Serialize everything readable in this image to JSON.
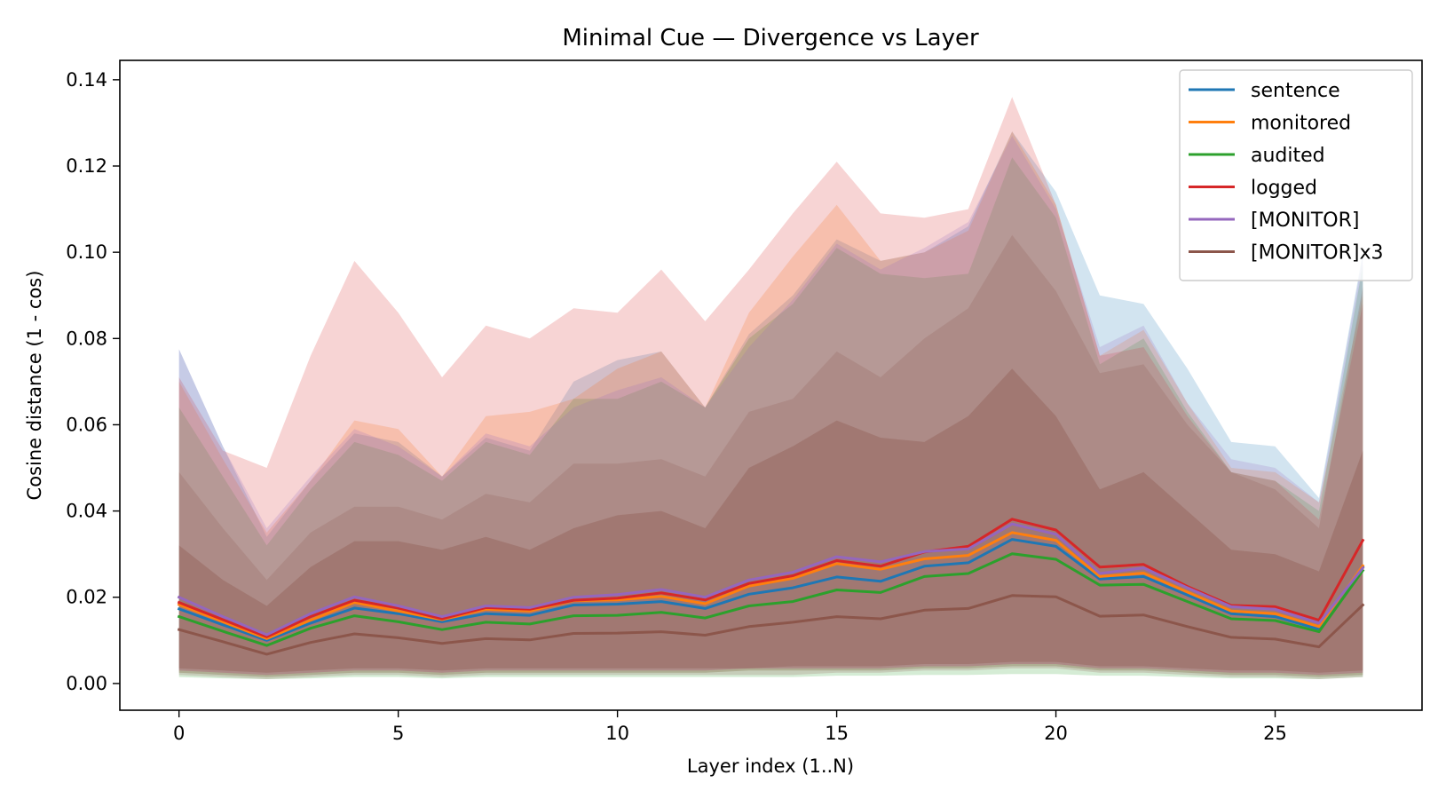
{
  "chart_data": {
    "type": "line",
    "title": "Minimal Cue — Divergence vs Layer",
    "xlabel": "Layer index (1..N)",
    "ylabel": "Cosine distance (1 - cos)",
    "xlim": [
      -1.35,
      28.35
    ],
    "ylim": [
      -0.0062,
      0.1445
    ],
    "x_ticks": [
      0,
      5,
      10,
      15,
      20,
      25
    ],
    "y_ticks": [
      0.0,
      0.02,
      0.04,
      0.06,
      0.08,
      0.1,
      0.12,
      0.14
    ],
    "y_tick_labels": [
      "0.00",
      "0.02",
      "0.04",
      "0.06",
      "0.08",
      "0.10",
      "0.12",
      "0.14"
    ],
    "legend_position": "top-right",
    "grid": false,
    "x": [
      0,
      1,
      2,
      3,
      4,
      5,
      6,
      7,
      8,
      9,
      10,
      11,
      12,
      13,
      14,
      15,
      16,
      17,
      18,
      19,
      20,
      21,
      22,
      23,
      24,
      25,
      26,
      27
    ],
    "series": [
      {
        "name": "sentence",
        "color": "#1f77b4",
        "values": [
          0.0173,
          0.0136,
          0.01,
          0.014,
          0.0175,
          0.0162,
          0.0143,
          0.0162,
          0.0158,
          0.0182,
          0.0184,
          0.019,
          0.0174,
          0.0207,
          0.0222,
          0.0247,
          0.0237,
          0.0272,
          0.028,
          0.0334,
          0.0318,
          0.0242,
          0.0248,
          0.0205,
          0.0162,
          0.0155,
          0.0126,
          0.027
        ],
        "upper": [
          0.0775,
          0.055,
          0.034,
          0.047,
          0.058,
          0.056,
          0.048,
          0.057,
          0.054,
          0.07,
          0.075,
          0.077,
          0.064,
          0.081,
          0.09,
          0.103,
          0.098,
          0.1,
          0.106,
          0.128,
          0.114,
          0.09,
          0.088,
          0.073,
          0.056,
          0.055,
          0.043,
          0.1
        ],
        "lower": [
          0.0025,
          0.002,
          0.0015,
          0.002,
          0.0025,
          0.0025,
          0.002,
          0.0025,
          0.0025,
          0.0025,
          0.0025,
          0.0025,
          0.0025,
          0.003,
          0.003,
          0.003,
          0.003,
          0.0035,
          0.0035,
          0.004,
          0.004,
          0.003,
          0.003,
          0.0025,
          0.002,
          0.002,
          0.0015,
          0.002
        ]
      },
      {
        "name": "monitored",
        "color": "#ff7f0e",
        "values": [
          0.0183,
          0.0143,
          0.0104,
          0.0147,
          0.0188,
          0.0168,
          0.0148,
          0.0172,
          0.0168,
          0.0192,
          0.0194,
          0.0202,
          0.0185,
          0.0226,
          0.0244,
          0.0278,
          0.0265,
          0.0289,
          0.0297,
          0.035,
          0.0332,
          0.0248,
          0.0256,
          0.0212,
          0.0168,
          0.0162,
          0.0132,
          0.0273
        ],
        "upper": [
          0.07,
          0.052,
          0.035,
          0.047,
          0.061,
          0.059,
          0.048,
          0.062,
          0.063,
          0.066,
          0.073,
          0.077,
          0.064,
          0.086,
          0.099,
          0.111,
          0.098,
          0.1,
          0.105,
          0.128,
          0.111,
          0.076,
          0.082,
          0.065,
          0.05,
          0.049,
          0.042,
          0.09
        ],
        "lower": [
          0.0025,
          0.002,
          0.0015,
          0.002,
          0.0025,
          0.0025,
          0.002,
          0.0025,
          0.0025,
          0.0025,
          0.0025,
          0.0025,
          0.0025,
          0.003,
          0.003,
          0.003,
          0.003,
          0.0035,
          0.0035,
          0.004,
          0.004,
          0.003,
          0.003,
          0.0025,
          0.002,
          0.002,
          0.0015,
          0.002
        ]
      },
      {
        "name": "audited",
        "color": "#2ca02c",
        "values": [
          0.0155,
          0.0121,
          0.0088,
          0.0128,
          0.0157,
          0.0143,
          0.0125,
          0.0142,
          0.0138,
          0.0157,
          0.0158,
          0.0165,
          0.0152,
          0.018,
          0.019,
          0.0217,
          0.0211,
          0.0248,
          0.0255,
          0.0301,
          0.0288,
          0.0228,
          0.023,
          0.019,
          0.015,
          0.0146,
          0.012,
          0.0262
        ],
        "upper": [
          0.064,
          0.048,
          0.032,
          0.045,
          0.056,
          0.053,
          0.047,
          0.056,
          0.053,
          0.066,
          0.066,
          0.07,
          0.064,
          0.08,
          0.088,
          0.101,
          0.095,
          0.094,
          0.095,
          0.122,
          0.108,
          0.074,
          0.08,
          0.063,
          0.049,
          0.047,
          0.04,
          0.097
        ],
        "lower": [
          0.0015,
          0.0012,
          0.001,
          0.0012,
          0.0015,
          0.0015,
          0.0012,
          0.0015,
          0.0015,
          0.0015,
          0.0015,
          0.0015,
          0.0015,
          0.0015,
          0.0015,
          0.0018,
          0.0018,
          0.002,
          0.002,
          0.0022,
          0.0022,
          0.0018,
          0.0018,
          0.0015,
          0.0012,
          0.0012,
          0.001,
          0.0015
        ]
      },
      {
        "name": "logged",
        "color": "#d62728",
        "values": [
          0.0188,
          0.0148,
          0.0108,
          0.0155,
          0.0193,
          0.0175,
          0.015,
          0.0176,
          0.0172,
          0.0193,
          0.0198,
          0.021,
          0.0194,
          0.0232,
          0.025,
          0.0285,
          0.0272,
          0.0305,
          0.0318,
          0.0381,
          0.0356,
          0.027,
          0.0276,
          0.0225,
          0.0181,
          0.0178,
          0.0147,
          0.0332
        ],
        "upper": [
          0.071,
          0.054,
          0.05,
          0.076,
          0.098,
          0.086,
          0.071,
          0.083,
          0.08,
          0.087,
          0.086,
          0.096,
          0.084,
          0.096,
          0.109,
          0.121,
          0.109,
          0.108,
          0.11,
          0.136,
          0.111,
          0.076,
          0.078,
          0.062,
          0.049,
          0.047,
          0.038,
          0.088
        ],
        "lower": [
          0.003,
          0.0025,
          0.002,
          0.0025,
          0.003,
          0.003,
          0.0025,
          0.003,
          0.003,
          0.003,
          0.003,
          0.003,
          0.003,
          0.0035,
          0.0035,
          0.0035,
          0.0035,
          0.004,
          0.004,
          0.0045,
          0.0045,
          0.0035,
          0.0035,
          0.003,
          0.0025,
          0.0025,
          0.002,
          0.0025
        ]
      },
      {
        "name": "[MONITOR]",
        "color": "#9467bd",
        "values": [
          0.02,
          0.0155,
          0.0113,
          0.0162,
          0.0201,
          0.018,
          0.0155,
          0.018,
          0.0176,
          0.02,
          0.0206,
          0.0218,
          0.02,
          0.024,
          0.0258,
          0.0294,
          0.0282,
          0.0306,
          0.0312,
          0.037,
          0.0346,
          0.0255,
          0.0268,
          0.0222,
          0.0178,
          0.0172,
          0.014,
          0.0268
        ],
        "upper": [
          0.0775,
          0.055,
          0.036,
          0.048,
          0.059,
          0.055,
          0.048,
          0.058,
          0.055,
          0.064,
          0.068,
          0.071,
          0.064,
          0.078,
          0.089,
          0.102,
          0.096,
          0.101,
          0.107,
          0.127,
          0.11,
          0.078,
          0.083,
          0.065,
          0.052,
          0.05,
          0.042,
          0.099
        ],
        "lower": [
          0.003,
          0.0025,
          0.002,
          0.0025,
          0.003,
          0.003,
          0.0025,
          0.003,
          0.003,
          0.003,
          0.003,
          0.003,
          0.003,
          0.0035,
          0.0035,
          0.0035,
          0.0035,
          0.004,
          0.004,
          0.0045,
          0.0045,
          0.0035,
          0.0035,
          0.003,
          0.0025,
          0.0025,
          0.002,
          0.0025
        ]
      },
      {
        "name": "[MONITOR]x3",
        "color": "#8c564b",
        "values": [
          0.0125,
          0.0097,
          0.0068,
          0.0095,
          0.0115,
          0.0106,
          0.0093,
          0.0104,
          0.0101,
          0.0116,
          0.0117,
          0.012,
          0.0112,
          0.0132,
          0.0142,
          0.0155,
          0.015,
          0.017,
          0.0174,
          0.0204,
          0.0201,
          0.0156,
          0.0159,
          0.0132,
          0.0107,
          0.0103,
          0.0085,
          0.0182
        ],
        "upper": [
          0.049,
          0.036,
          0.024,
          0.035,
          0.041,
          0.041,
          0.038,
          0.044,
          0.042,
          0.051,
          0.051,
          0.052,
          0.048,
          0.063,
          0.066,
          0.077,
          0.071,
          0.08,
          0.087,
          0.104,
          0.091,
          0.072,
          0.074,
          0.06,
          0.049,
          0.045,
          0.036,
          0.092
        ],
        "lower": [
          0.002,
          0.0015,
          0.001,
          0.0015,
          0.002,
          0.002,
          0.0015,
          0.002,
          0.002,
          0.002,
          0.002,
          0.002,
          0.002,
          0.002,
          0.002,
          0.0025,
          0.0025,
          0.003,
          0.003,
          0.0035,
          0.0035,
          0.0025,
          0.0025,
          0.002,
          0.0015,
          0.0015,
          0.001,
          0.0015
        ]
      }
    ],
    "inner_band_upper": [
      0.032,
      0.024,
      0.018,
      0.027,
      0.033,
      0.033,
      0.031,
      0.034,
      0.031,
      0.036,
      0.039,
      0.04,
      0.036,
      0.05,
      0.055,
      0.061,
      0.057,
      0.056,
      0.062,
      0.073,
      0.062,
      0.045,
      0.049,
      0.04,
      0.031,
      0.03,
      0.026,
      0.054
    ],
    "inner_band_lower": [
      0.0035,
      0.003,
      0.0025,
      0.003,
      0.0035,
      0.0035,
      0.003,
      0.0035,
      0.0035,
      0.0035,
      0.0035,
      0.0035,
      0.0035,
      0.0035,
      0.004,
      0.004,
      0.004,
      0.0045,
      0.0045,
      0.005,
      0.005,
      0.004,
      0.004,
      0.0035,
      0.003,
      0.003,
      0.0025,
      0.003
    ],
    "inner_band_color": "#8c564b"
  }
}
